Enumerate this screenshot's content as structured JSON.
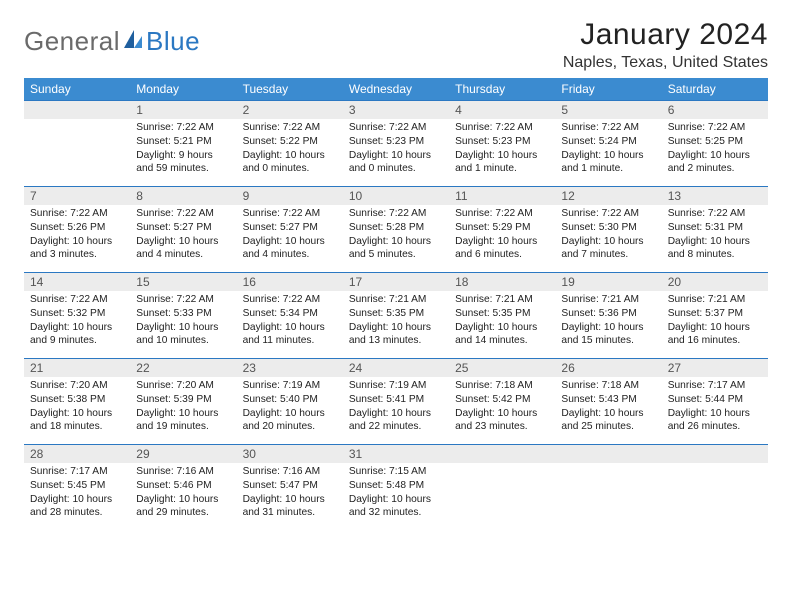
{
  "brand": {
    "part1": "General",
    "part2": "Blue"
  },
  "title": "January 2024",
  "location": "Naples, Texas, United States",
  "colors": {
    "header_bg": "#3b8bd0",
    "row_border": "#2b78c2",
    "daynum_bg": "#ececec",
    "brand_gray": "#6a6a6a",
    "brand_blue": "#2b78c2"
  },
  "weekdays": [
    "Sunday",
    "Monday",
    "Tuesday",
    "Wednesday",
    "Thursday",
    "Friday",
    "Saturday"
  ],
  "weeks": [
    [
      null,
      {
        "n": "1",
        "sr": "Sunrise: 7:22 AM",
        "ss": "Sunset: 5:21 PM",
        "dl": "Daylight: 9 hours and 59 minutes."
      },
      {
        "n": "2",
        "sr": "Sunrise: 7:22 AM",
        "ss": "Sunset: 5:22 PM",
        "dl": "Daylight: 10 hours and 0 minutes."
      },
      {
        "n": "3",
        "sr": "Sunrise: 7:22 AM",
        "ss": "Sunset: 5:23 PM",
        "dl": "Daylight: 10 hours and 0 minutes."
      },
      {
        "n": "4",
        "sr": "Sunrise: 7:22 AM",
        "ss": "Sunset: 5:23 PM",
        "dl": "Daylight: 10 hours and 1 minute."
      },
      {
        "n": "5",
        "sr": "Sunrise: 7:22 AM",
        "ss": "Sunset: 5:24 PM",
        "dl": "Daylight: 10 hours and 1 minute."
      },
      {
        "n": "6",
        "sr": "Sunrise: 7:22 AM",
        "ss": "Sunset: 5:25 PM",
        "dl": "Daylight: 10 hours and 2 minutes."
      }
    ],
    [
      {
        "n": "7",
        "sr": "Sunrise: 7:22 AM",
        "ss": "Sunset: 5:26 PM",
        "dl": "Daylight: 10 hours and 3 minutes."
      },
      {
        "n": "8",
        "sr": "Sunrise: 7:22 AM",
        "ss": "Sunset: 5:27 PM",
        "dl": "Daylight: 10 hours and 4 minutes."
      },
      {
        "n": "9",
        "sr": "Sunrise: 7:22 AM",
        "ss": "Sunset: 5:27 PM",
        "dl": "Daylight: 10 hours and 4 minutes."
      },
      {
        "n": "10",
        "sr": "Sunrise: 7:22 AM",
        "ss": "Sunset: 5:28 PM",
        "dl": "Daylight: 10 hours and 5 minutes."
      },
      {
        "n": "11",
        "sr": "Sunrise: 7:22 AM",
        "ss": "Sunset: 5:29 PM",
        "dl": "Daylight: 10 hours and 6 minutes."
      },
      {
        "n": "12",
        "sr": "Sunrise: 7:22 AM",
        "ss": "Sunset: 5:30 PM",
        "dl": "Daylight: 10 hours and 7 minutes."
      },
      {
        "n": "13",
        "sr": "Sunrise: 7:22 AM",
        "ss": "Sunset: 5:31 PM",
        "dl": "Daylight: 10 hours and 8 minutes."
      }
    ],
    [
      {
        "n": "14",
        "sr": "Sunrise: 7:22 AM",
        "ss": "Sunset: 5:32 PM",
        "dl": "Daylight: 10 hours and 9 minutes."
      },
      {
        "n": "15",
        "sr": "Sunrise: 7:22 AM",
        "ss": "Sunset: 5:33 PM",
        "dl": "Daylight: 10 hours and 10 minutes."
      },
      {
        "n": "16",
        "sr": "Sunrise: 7:22 AM",
        "ss": "Sunset: 5:34 PM",
        "dl": "Daylight: 10 hours and 11 minutes."
      },
      {
        "n": "17",
        "sr": "Sunrise: 7:21 AM",
        "ss": "Sunset: 5:35 PM",
        "dl": "Daylight: 10 hours and 13 minutes."
      },
      {
        "n": "18",
        "sr": "Sunrise: 7:21 AM",
        "ss": "Sunset: 5:35 PM",
        "dl": "Daylight: 10 hours and 14 minutes."
      },
      {
        "n": "19",
        "sr": "Sunrise: 7:21 AM",
        "ss": "Sunset: 5:36 PM",
        "dl": "Daylight: 10 hours and 15 minutes."
      },
      {
        "n": "20",
        "sr": "Sunrise: 7:21 AM",
        "ss": "Sunset: 5:37 PM",
        "dl": "Daylight: 10 hours and 16 minutes."
      }
    ],
    [
      {
        "n": "21",
        "sr": "Sunrise: 7:20 AM",
        "ss": "Sunset: 5:38 PM",
        "dl": "Daylight: 10 hours and 18 minutes."
      },
      {
        "n": "22",
        "sr": "Sunrise: 7:20 AM",
        "ss": "Sunset: 5:39 PM",
        "dl": "Daylight: 10 hours and 19 minutes."
      },
      {
        "n": "23",
        "sr": "Sunrise: 7:19 AM",
        "ss": "Sunset: 5:40 PM",
        "dl": "Daylight: 10 hours and 20 minutes."
      },
      {
        "n": "24",
        "sr": "Sunrise: 7:19 AM",
        "ss": "Sunset: 5:41 PM",
        "dl": "Daylight: 10 hours and 22 minutes."
      },
      {
        "n": "25",
        "sr": "Sunrise: 7:18 AM",
        "ss": "Sunset: 5:42 PM",
        "dl": "Daylight: 10 hours and 23 minutes."
      },
      {
        "n": "26",
        "sr": "Sunrise: 7:18 AM",
        "ss": "Sunset: 5:43 PM",
        "dl": "Daylight: 10 hours and 25 minutes."
      },
      {
        "n": "27",
        "sr": "Sunrise: 7:17 AM",
        "ss": "Sunset: 5:44 PM",
        "dl": "Daylight: 10 hours and 26 minutes."
      }
    ],
    [
      {
        "n": "28",
        "sr": "Sunrise: 7:17 AM",
        "ss": "Sunset: 5:45 PM",
        "dl": "Daylight: 10 hours and 28 minutes."
      },
      {
        "n": "29",
        "sr": "Sunrise: 7:16 AM",
        "ss": "Sunset: 5:46 PM",
        "dl": "Daylight: 10 hours and 29 minutes."
      },
      {
        "n": "30",
        "sr": "Sunrise: 7:16 AM",
        "ss": "Sunset: 5:47 PM",
        "dl": "Daylight: 10 hours and 31 minutes."
      },
      {
        "n": "31",
        "sr": "Sunrise: 7:15 AM",
        "ss": "Sunset: 5:48 PM",
        "dl": "Daylight: 10 hours and 32 minutes."
      },
      null,
      null,
      null
    ]
  ]
}
